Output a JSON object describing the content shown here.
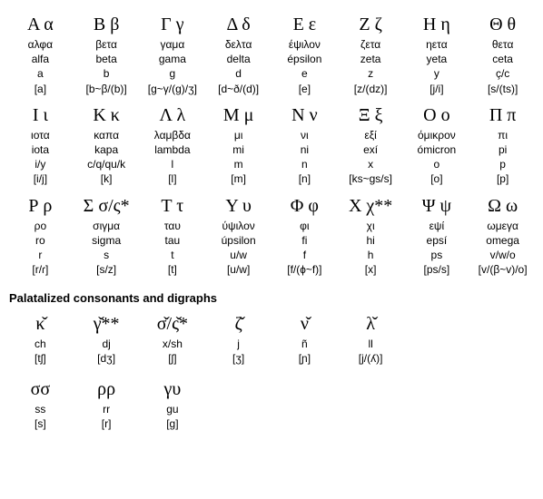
{
  "alphabet": [
    {
      "glyph": "Α α",
      "gname": "αλφα",
      "tname": "alfa",
      "latin": "a",
      "ipa": "[a]"
    },
    {
      "glyph": "Β β",
      "gname": "βετα",
      "tname": "beta",
      "latin": "b",
      "ipa": "[b~β/(b)]"
    },
    {
      "glyph": "Γ γ",
      "gname": "γαμα",
      "tname": "gama",
      "latin": "g",
      "ipa": "[g~γ/(g)/ʒ]"
    },
    {
      "glyph": "Δ δ",
      "gname": "δελτα",
      "tname": "delta",
      "latin": "d",
      "ipa": "[d~ð/(d)]"
    },
    {
      "glyph": "Ε ε",
      "gname": "έψιλον",
      "tname": "épsilon",
      "latin": "e",
      "ipa": "[e]"
    },
    {
      "glyph": "Ζ ζ",
      "gname": "ζετα",
      "tname": "zeta",
      "latin": "z",
      "ipa": "[z/(dz)]"
    },
    {
      "glyph": "Η η",
      "gname": "ηετα",
      "tname": "yeta",
      "latin": "y",
      "ipa": "[j/i]"
    },
    {
      "glyph": "Θ θ",
      "gname": "θετα",
      "tname": "ceta",
      "latin": "ç/c",
      "ipa": "[s/(ts)]"
    },
    {
      "glyph": "Ι ι",
      "gname": "ιοτα",
      "tname": "iota",
      "latin": "i/y",
      "ipa": "[i/j]"
    },
    {
      "glyph": "Κ κ",
      "gname": "καπα",
      "tname": "kapa",
      "latin": "c/q/qu/k",
      "ipa": "[k]"
    },
    {
      "glyph": "Λ λ",
      "gname": "λαμβδα",
      "tname": "lambda",
      "latin": "l",
      "ipa": "[l]"
    },
    {
      "glyph": "Μ μ",
      "gname": "μι",
      "tname": "mi",
      "latin": "m",
      "ipa": "[m]"
    },
    {
      "glyph": "Ν ν",
      "gname": "νι",
      "tname": "ni",
      "latin": "n",
      "ipa": "[n]"
    },
    {
      "glyph": "Ξ ξ",
      "gname": "εξί",
      "tname": "exí",
      "latin": "x",
      "ipa": "[ks~gs/s]"
    },
    {
      "glyph": "Ο ο",
      "gname": "όμικρον",
      "tname": "ómicron",
      "latin": "o",
      "ipa": "[o]"
    },
    {
      "glyph": "Π π",
      "gname": "πι",
      "tname": "pi",
      "latin": "p",
      "ipa": "[p]"
    },
    {
      "glyph": "Ρ ρ",
      "gname": "ρο",
      "tname": "ro",
      "latin": "r",
      "ipa": "[r/ɾ]"
    },
    {
      "glyph": "Σ σ/ς*",
      "gname": "σιγμα",
      "tname": "sigma",
      "latin": "s",
      "ipa": "[s/z]"
    },
    {
      "glyph": "Τ τ",
      "gname": "ταυ",
      "tname": "tau",
      "latin": "t",
      "ipa": "[t]"
    },
    {
      "glyph": "Υ υ",
      "gname": "ύψιλον",
      "tname": "úpsilon",
      "latin": "u/w",
      "ipa": "[u/w]"
    },
    {
      "glyph": "Φ φ",
      "gname": "φι",
      "tname": "fi",
      "latin": "f",
      "ipa": "[f/(ɸ~f)]"
    },
    {
      "glyph": "Χ χ**",
      "gname": "χι",
      "tname": "hi",
      "latin": "h",
      "ipa": "[x]"
    },
    {
      "glyph": "Ψ ψ",
      "gname": "εψί",
      "tname": "epsí",
      "latin": "ps",
      "ipa": "[ps/s]"
    },
    {
      "glyph": "Ω ω",
      "gname": "ωμεγα",
      "tname": "omega",
      "latin": "v/w/o",
      "ipa": "[v/(β~v)/o]"
    }
  ],
  "section_title": "Palatalized consonants and digraphs",
  "palatal": [
    {
      "glyph": "κ̌",
      "latin": "ch",
      "ipa": "[tʃ]"
    },
    {
      "glyph": "γ̌**",
      "latin": "dj",
      "ipa": "[dʒ]"
    },
    {
      "glyph": "σ̌/ς̌*",
      "latin": "x/sh",
      "ipa": "[ʃ]"
    },
    {
      "glyph": "ζ̌",
      "latin": "j",
      "ipa": "[ʒ]"
    },
    {
      "glyph": "ν̌",
      "latin": "ñ",
      "ipa": "[ɲ]"
    },
    {
      "glyph": "λ̌",
      "latin": "ll",
      "ipa": "[j/(ʎ)]"
    }
  ],
  "digraphs": [
    {
      "glyph": "σσ",
      "latin": "ss",
      "ipa": "[s]"
    },
    {
      "glyph": "ρρ",
      "latin": "rr",
      "ipa": "[r]"
    },
    {
      "glyph": "γυ",
      "latin": "gu",
      "ipa": "[g]"
    }
  ]
}
